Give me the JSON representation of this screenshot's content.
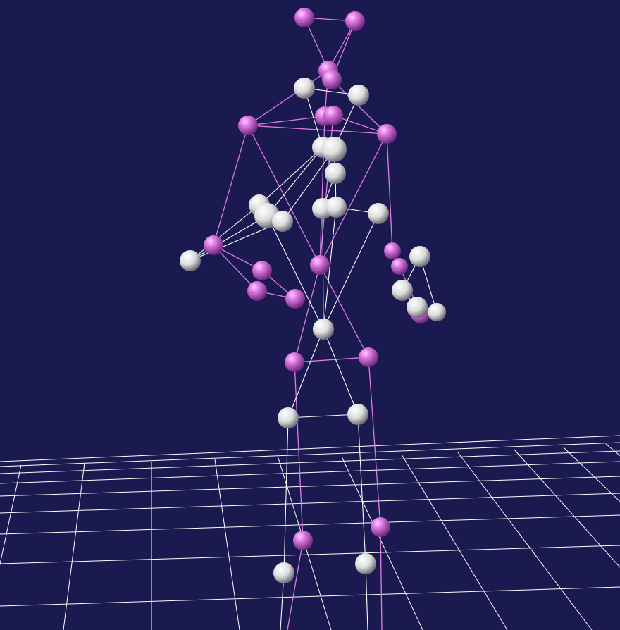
{
  "viewport": {
    "background_color": "#1b1a50",
    "grid_color": "#ffffff",
    "skeleton_a": {
      "joint_color": "#e07be6",
      "bone_color": "#e07be6"
    },
    "skeleton_b": {
      "joint_color": "#e8e8e8",
      "bone_color": "#ffffff"
    }
  }
}
